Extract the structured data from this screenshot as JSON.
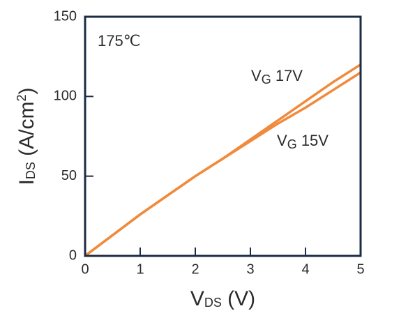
{
  "chart_data": {
    "type": "line",
    "annotation": "175℃",
    "x_label": [
      "V",
      "DS",
      " (V)"
    ],
    "y_label": [
      "I",
      "DS",
      " (A/cm",
      "2",
      ")"
    ],
    "x": [
      0,
      0.5,
      1,
      1.5,
      2,
      2.5,
      3,
      3.5,
      4,
      4.5,
      5
    ],
    "series": [
      {
        "name": [
          "V",
          "G",
          " 17V"
        ],
        "color": "#f08a3c",
        "values": [
          0,
          13,
          26,
          38,
          50,
          61,
          73,
          85,
          97,
          109,
          120
        ]
      },
      {
        "name": [
          "V",
          "G",
          " 15V"
        ],
        "color": "#f08a3c",
        "values": [
          0,
          13,
          26,
          38,
          50,
          61,
          72,
          83,
          93,
          104,
          115
        ]
      }
    ],
    "xlim": [
      0,
      5
    ],
    "xticks": [
      0,
      1,
      2,
      3,
      4,
      5
    ],
    "ylim": [
      0,
      150
    ],
    "yticks": [
      0,
      50,
      100,
      150
    ],
    "frame_color": "#1c2b45"
  }
}
